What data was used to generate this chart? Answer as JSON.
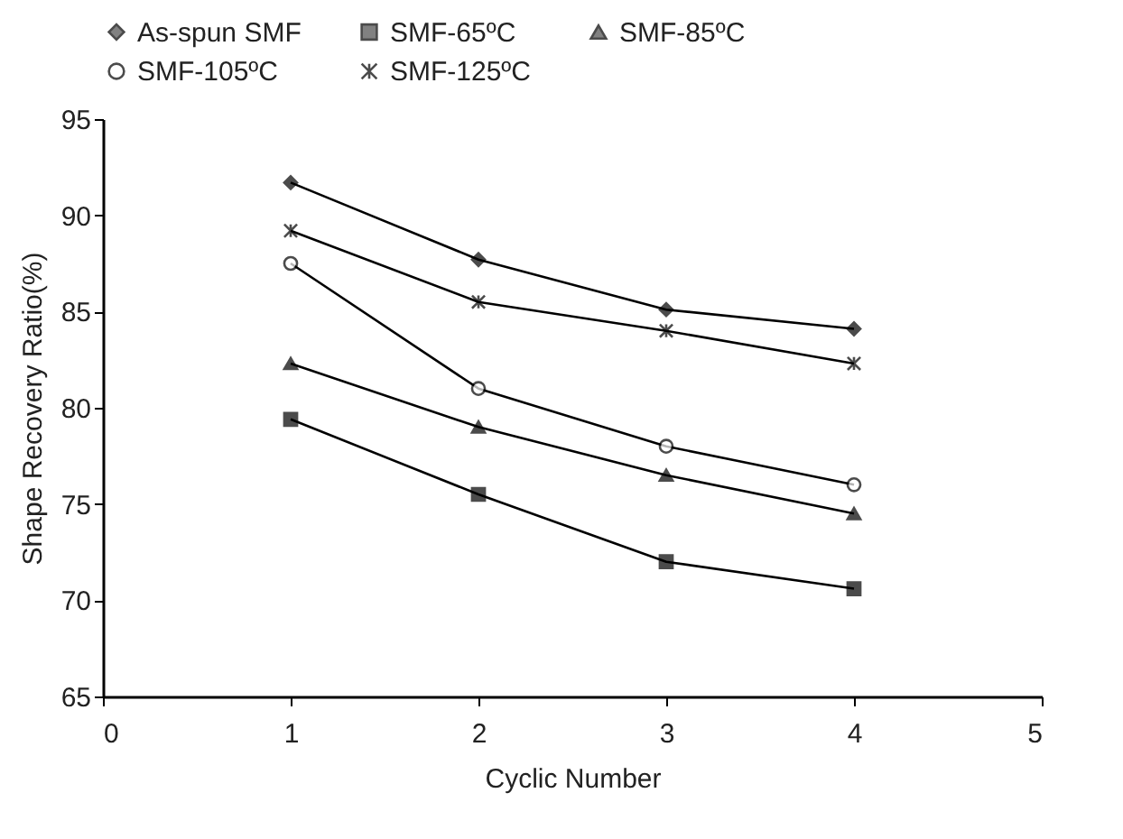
{
  "chart_data": {
    "type": "line",
    "xlabel": "Cyclic Number",
    "ylabel": "Shape Recovery Ratio(%)",
    "x": [
      1,
      2,
      3,
      4
    ],
    "xlim": [
      0,
      5
    ],
    "xticks": [
      0,
      1,
      2,
      3,
      4,
      5
    ],
    "ylim": [
      65,
      95
    ],
    "yticks": [
      65,
      70,
      75,
      80,
      85,
      90,
      95
    ],
    "grid": false,
    "legend": "top",
    "line_style": "solid",
    "series": [
      {
        "name": "As-spun SMF",
        "color": "#000000",
        "marker": "diamond",
        "values": [
          91.7,
          87.7,
          85.1,
          84.1
        ]
      },
      {
        "name": "SMF-65ºC",
        "color": "#000000",
        "marker": "square",
        "values": [
          79.4,
          75.5,
          72.0,
          70.6
        ]
      },
      {
        "name": "SMF-85ºC",
        "color": "#000000",
        "marker": "triangle",
        "values": [
          82.3,
          79.0,
          76.5,
          74.5
        ]
      },
      {
        "name": "SMF-105ºC",
        "color": "#000000",
        "marker": "circle",
        "values": [
          87.5,
          81.0,
          78.0,
          76.0
        ]
      },
      {
        "name": "SMF-125ºC",
        "color": "#000000",
        "marker": "cross",
        "values": [
          89.2,
          85.5,
          84.0,
          82.3
        ]
      }
    ]
  }
}
